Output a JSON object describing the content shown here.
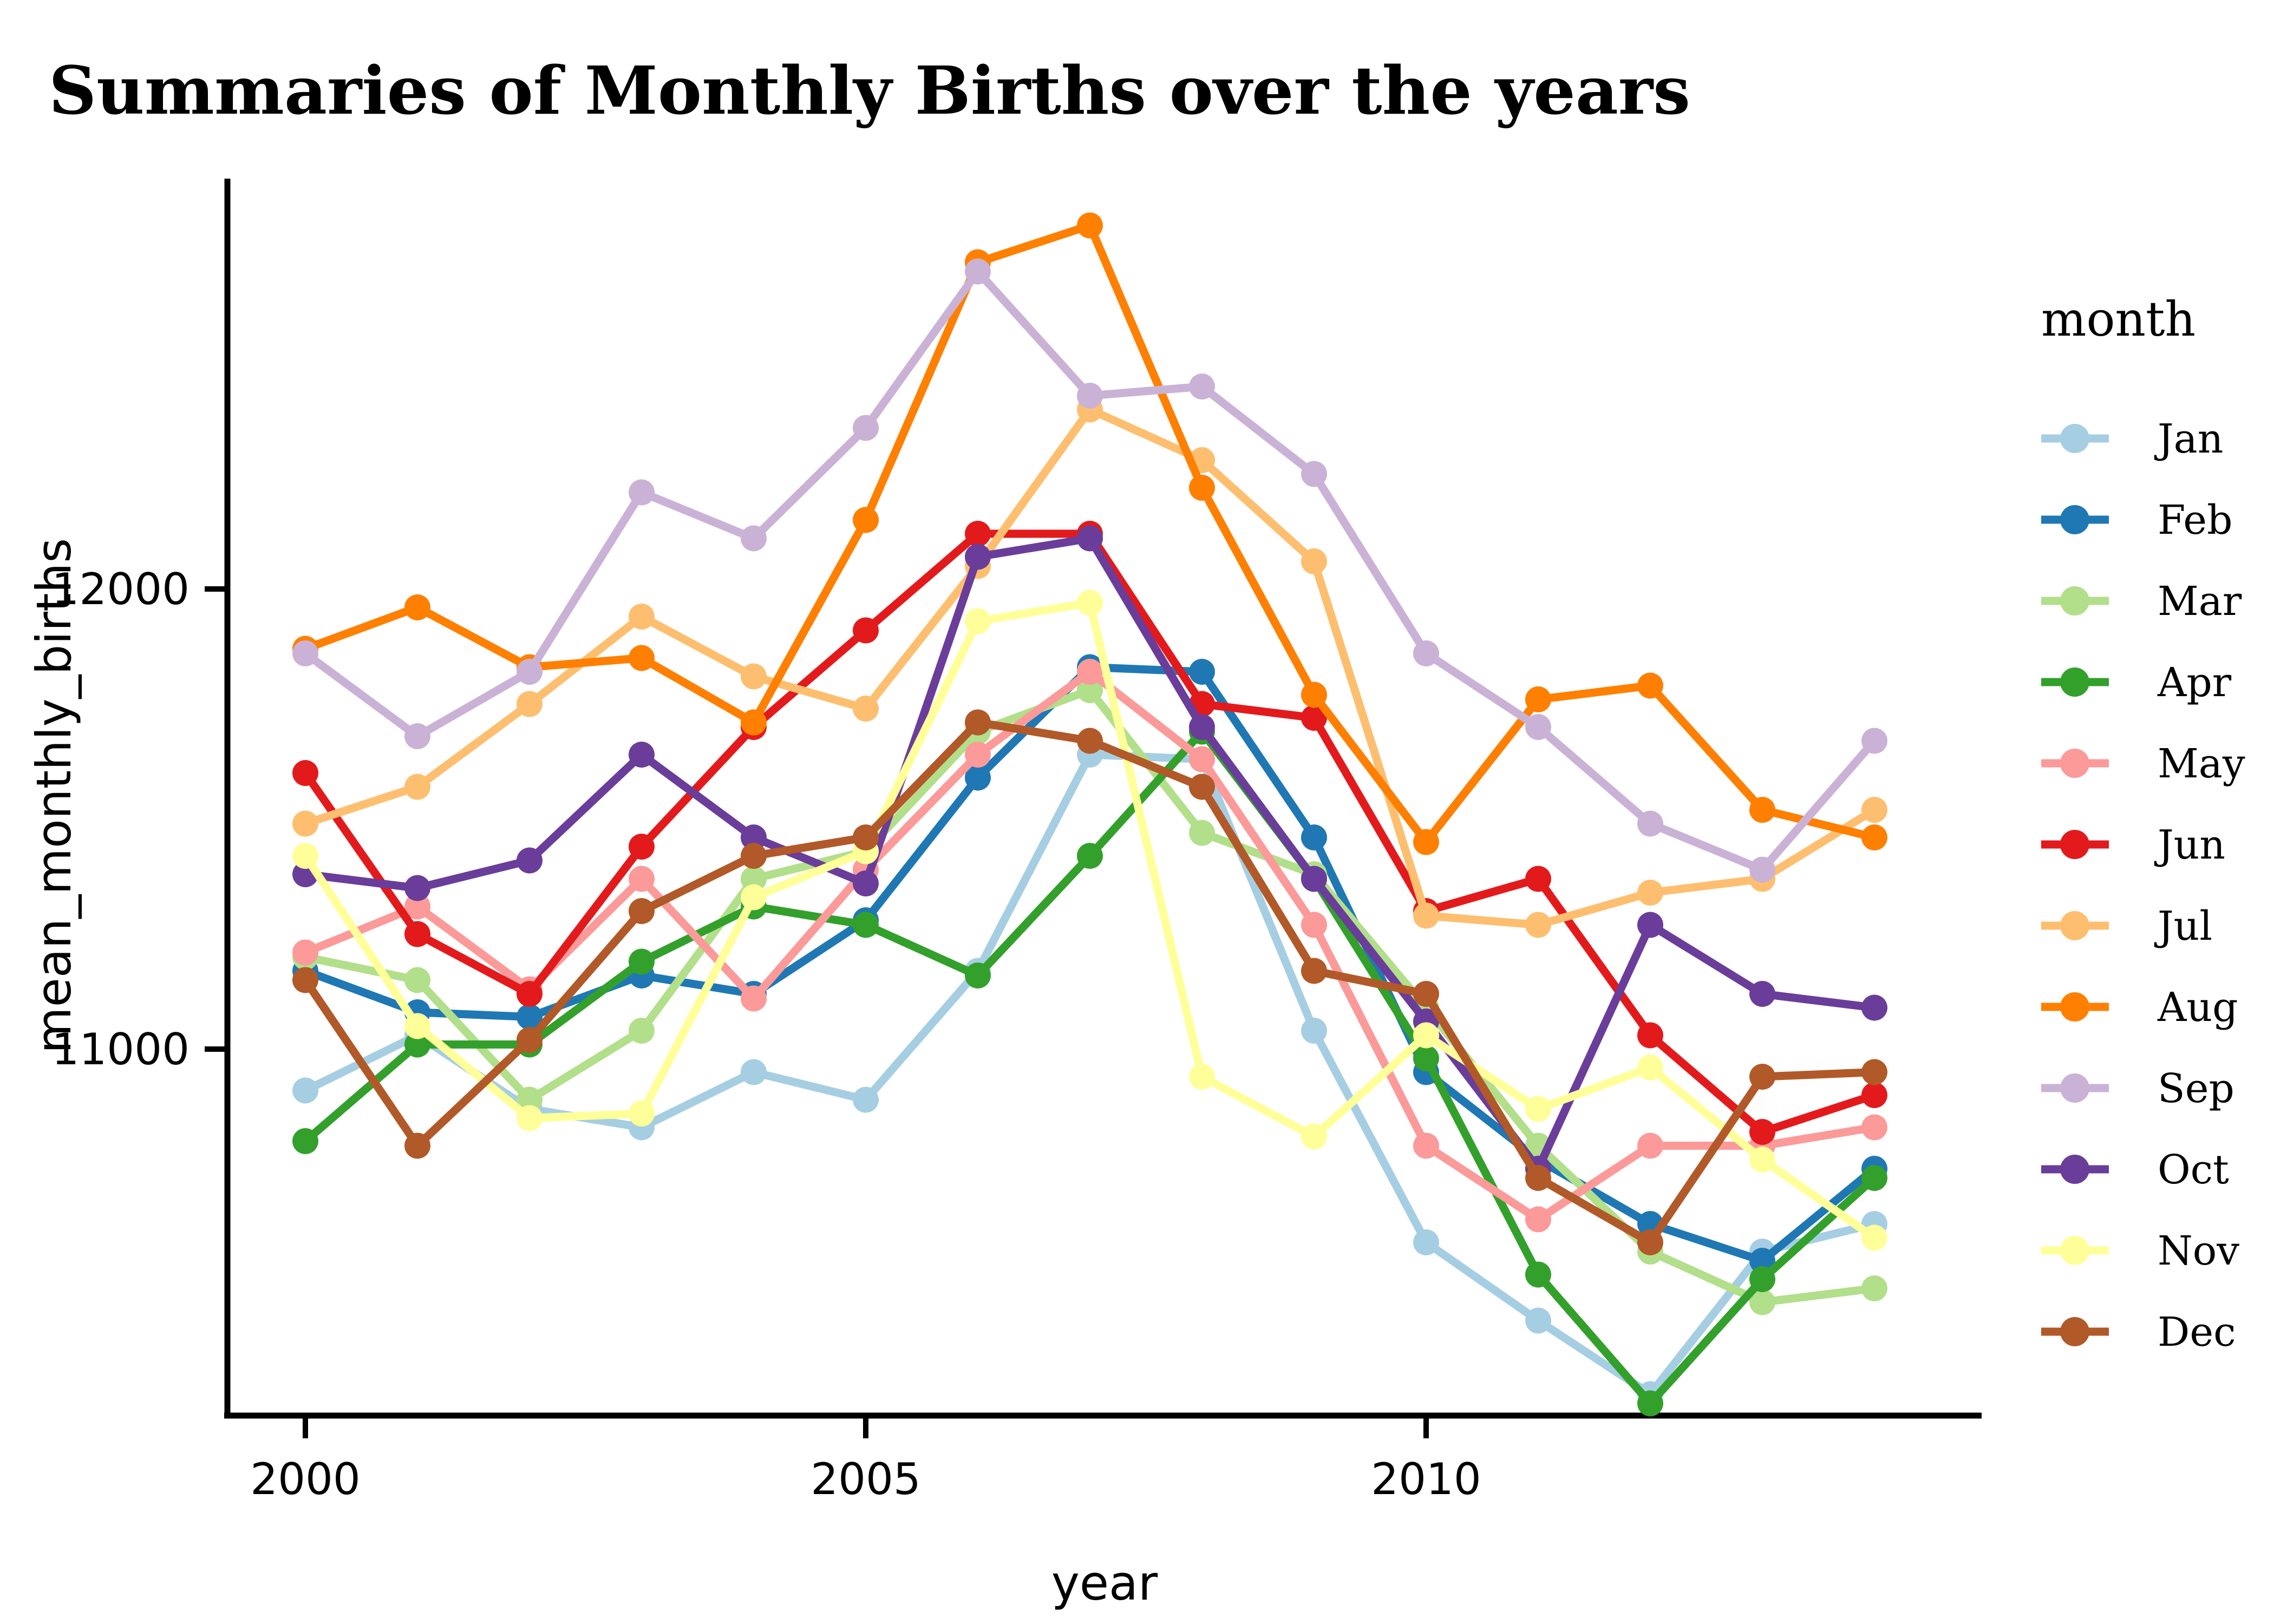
{
  "title": "Summaries of Monthly Births over the years",
  "axes": {
    "x": {
      "label": "year",
      "ticks": [
        2000,
        2005,
        2010
      ]
    },
    "y": {
      "label": "mean_monthly_births",
      "ticks": [
        11000,
        12000
      ]
    }
  },
  "legend": {
    "title": "month"
  },
  "chart_data": {
    "type": "line",
    "x": [
      2000,
      2001,
      2002,
      2003,
      2004,
      2005,
      2006,
      2007,
      2008,
      2009,
      2010,
      2011,
      2012,
      2013,
      2014
    ],
    "xlabel": "year",
    "ylabel": "mean_monthly_births",
    "x_ticks": [
      2000,
      2005,
      2010
    ],
    "y_ticks": [
      11000,
      12000
    ],
    "ylim": [
      10200,
      12890
    ],
    "xlim": [
      1999.3,
      2015.1
    ],
    "grid": false,
    "legend_position": "right",
    "marker": "point",
    "series": [
      {
        "name": "Jan",
        "color": "#a6cee3",
        "values": [
          10910,
          11030,
          10870,
          10830,
          10950,
          10890,
          11170,
          11640,
          11630,
          11040,
          10580,
          10410,
          10250,
          10560,
          10620
        ]
      },
      {
        "name": "Feb",
        "color": "#1f78b4",
        "values": [
          11170,
          11080,
          11070,
          11160,
          11120,
          11280,
          11590,
          11830,
          11820,
          11460,
          10950,
          10760,
          10620,
          10540,
          10740
        ]
      },
      {
        "name": "Mar",
        "color": "#b2df8a",
        "values": [
          11200,
          11150,
          10890,
          11040,
          11370,
          11430,
          11690,
          11780,
          11470,
          11380,
          11090,
          10790,
          10560,
          10450,
          10480
        ]
      },
      {
        "name": "Apr",
        "color": "#33a02c",
        "values": [
          10800,
          11010,
          11010,
          11190,
          11310,
          11270,
          11160,
          11420,
          11690,
          11370,
          10980,
          10510,
          10230,
          10500,
          10720
        ]
      },
      {
        "name": "May",
        "color": "#fb9a99",
        "values": [
          11210,
          11310,
          11130,
          11370,
          11110,
          11390,
          11640,
          11820,
          11630,
          11270,
          10790,
          10630,
          10790,
          10790,
          10830
        ]
      },
      {
        "name": "Jun",
        "color": "#e31a1c",
        "values": [
          11600,
          11250,
          11120,
          11440,
          11700,
          11910,
          12120,
          12120,
          11750,
          11720,
          11300,
          11370,
          11030,
          10820,
          10900
        ]
      },
      {
        "name": "Jul",
        "color": "#fdbf6f",
        "values": [
          11490,
          11570,
          11750,
          11940,
          11810,
          11740,
          12050,
          12390,
          12280,
          12060,
          11290,
          11270,
          11340,
          11370,
          11520
        ]
      },
      {
        "name": "Aug",
        "color": "#ff7f00",
        "values": [
          11870,
          11960,
          11830,
          11850,
          11710,
          12150,
          12710,
          12790,
          12220,
          11770,
          11450,
          11760,
          11790,
          11520,
          11460
        ]
      },
      {
        "name": "Sep",
        "color": "#cab2d6",
        "values": [
          11860,
          11680,
          11820,
          12210,
          12110,
          12350,
          12690,
          12420,
          12440,
          12250,
          11860,
          11700,
          11490,
          11390,
          11670
        ]
      },
      {
        "name": "Oct",
        "color": "#6a3d9a",
        "values": [
          11380,
          11350,
          11410,
          11640,
          11460,
          11360,
          12070,
          12110,
          11700,
          11370,
          11060,
          10740,
          11270,
          11120,
          11090
        ]
      },
      {
        "name": "Nov",
        "color": "#ffff99",
        "values": [
          11420,
          11050,
          10850,
          10860,
          11330,
          11430,
          11930,
          11970,
          10940,
          10810,
          11030,
          10870,
          10960,
          10760,
          10590
        ]
      },
      {
        "name": "Dec",
        "color": "#b15928",
        "values": [
          11150,
          10790,
          11020,
          11300,
          11420,
          11460,
          11710,
          11670,
          11570,
          11170,
          11120,
          10720,
          10580,
          10940,
          10950
        ]
      }
    ]
  }
}
